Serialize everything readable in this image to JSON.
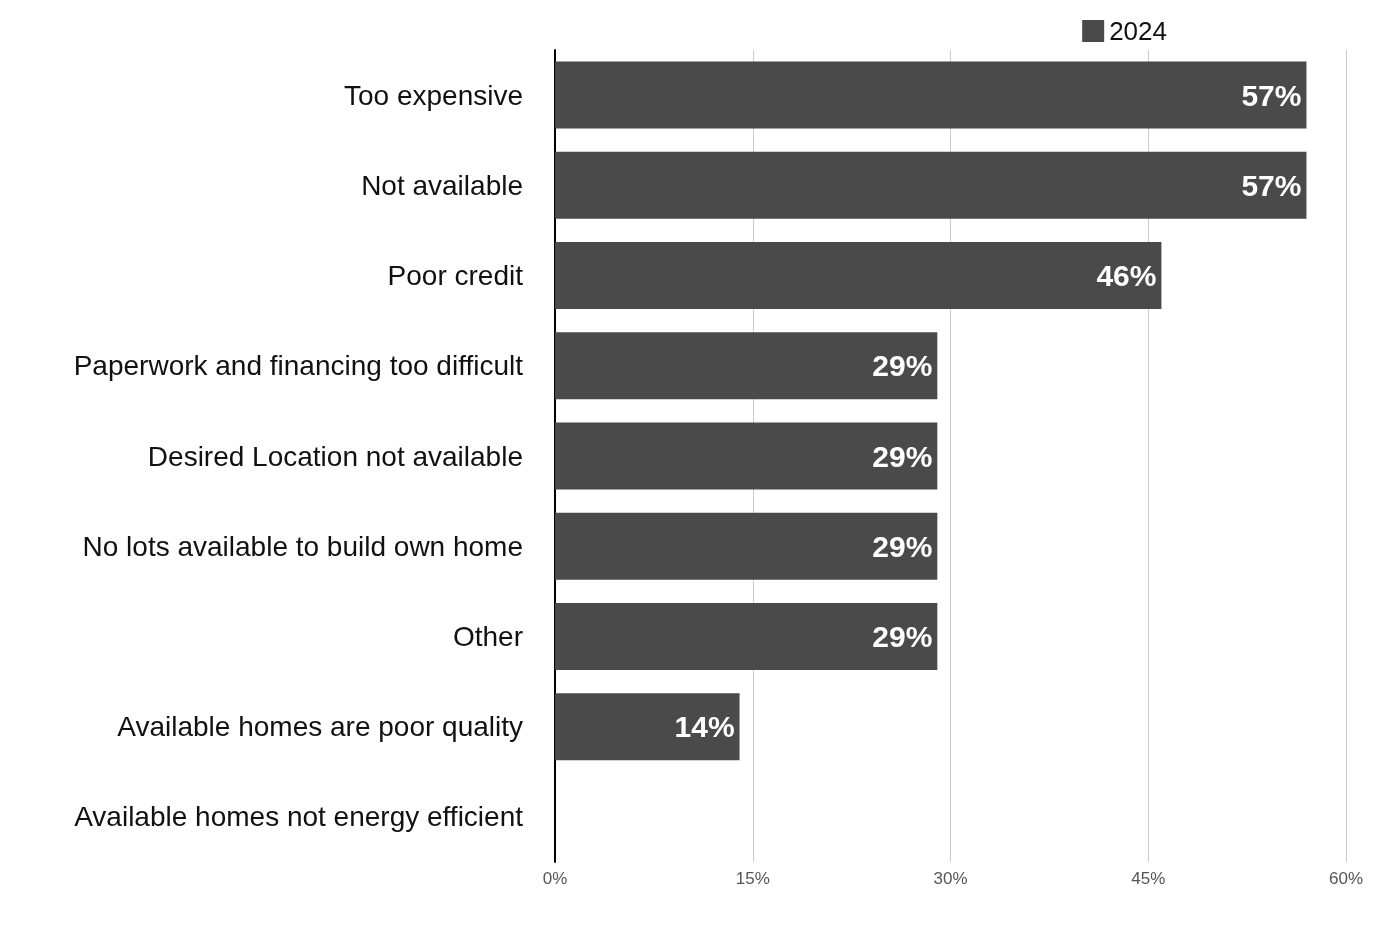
{
  "chart_data": {
    "type": "bar",
    "orientation": "horizontal",
    "categories": [
      "Too expensive",
      "Not available",
      "Poor credit",
      "Paperwork and financing too difficult",
      "Desired Location not available",
      "No lots available to build own home",
      "Other",
      "Available homes are poor quality",
      "Available homes not energy efficient"
    ],
    "series": [
      {
        "name": "2024",
        "color": "#4a4a4a",
        "values": [
          57,
          57,
          46,
          29,
          29,
          29,
          29,
          14,
          0
        ],
        "value_labels": [
          "57%",
          "57%",
          "46%",
          "29%",
          "29%",
          "29%",
          "29%",
          "14%",
          null
        ]
      }
    ],
    "xlim": [
      0,
      60
    ],
    "xticks": [
      {
        "value": 0,
        "label": "0%"
      },
      {
        "value": 15,
        "label": "15%"
      },
      {
        "value": 30,
        "label": "30%"
      },
      {
        "value": 45,
        "label": "45%"
      },
      {
        "value": 60,
        "label": "60%"
      }
    ],
    "grid": "x",
    "legend": "top right"
  }
}
